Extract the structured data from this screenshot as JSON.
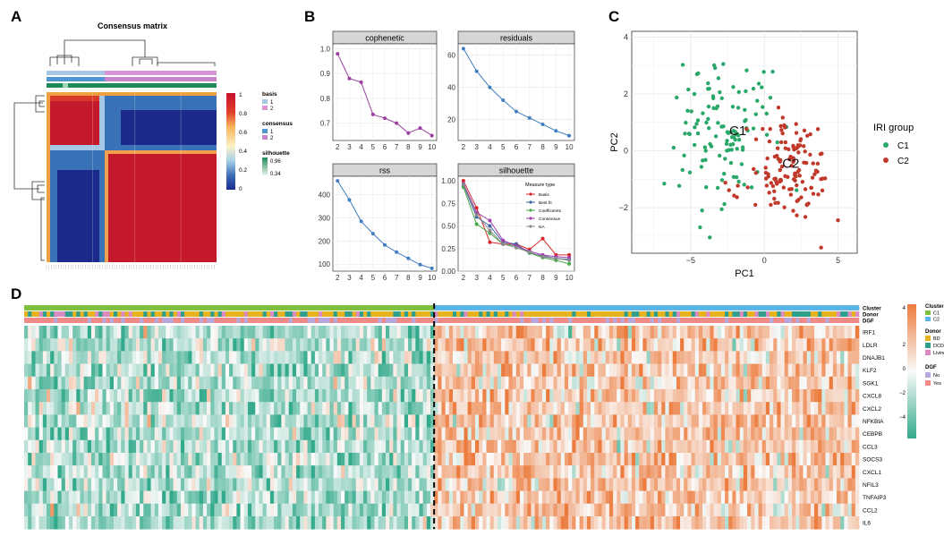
{
  "panels": {
    "A": {
      "letter": "A",
      "title": "Consensus matrix",
      "legend": {
        "basis_title": "basis",
        "basis_items": [
          "1",
          "2"
        ],
        "consensus_title": "consensus",
        "consensus_items": [
          "1",
          "2"
        ],
        "silhouette_title": "silhouette",
        "silhouette_ticks": [
          "0.96",
          "0.34"
        ],
        "scale_ticks": [
          "1",
          "0.8",
          "0.6",
          "0.4",
          "0.2",
          "0"
        ]
      },
      "colors": {
        "basis_1": "#a6c8e6",
        "basis_2": "#d696d6",
        "consensus_1": "#4f96d2",
        "consensus_2": "#c785c9",
        "silhouette": "#1e8a5a"
      }
    },
    "B": {
      "letter": "B"
    },
    "C": {
      "letter": "C"
    },
    "D": {
      "letter": "D",
      "track_labels": [
        "Cluster",
        "Donor",
        "DGF"
      ],
      "genes": [
        "IRF1",
        "LDLR",
        "DNAJB1",
        "KLF2",
        "SGK1",
        "CXCL8",
        "CXCL2",
        "NFKBIA",
        "CEBPB",
        "CCL3",
        "SOCS3",
        "CXCL1",
        "NFIL3",
        "TNFAIP3",
        "CCL2",
        "IL6"
      ],
      "legend": {
        "cluster_title": "Cluster",
        "cluster_items": [
          "C1",
          "C2"
        ],
        "donor_title": "Donor",
        "donor_items": [
          "BD",
          "DCD",
          "Living"
        ],
        "dgf_title": "DGF",
        "dgf_items": [
          "No",
          "Yes"
        ],
        "scale_ticks": [
          "4",
          "2",
          "0",
          "−2",
          "−4"
        ]
      },
      "colors": {
        "C1": "#7fbf3f",
        "C2": "#5ab4e5",
        "BD": "#e6b21e",
        "DCD": "#2f9e8a",
        "Living": "#d98ac0",
        "No": "#b7a7dc",
        "Yes": "#f08a86"
      }
    }
  },
  "chart_data": [
    {
      "type": "heatmap",
      "panel": "A",
      "title": "Consensus matrix",
      "blocks": [
        {
          "name": "cluster 1",
          "share": 0.34
        },
        {
          "name": "cluster 2",
          "share": 0.66
        }
      ],
      "value_range": [
        0,
        1
      ]
    },
    {
      "type": "line",
      "panel": "B",
      "title": "cophenetic",
      "x": [
        2,
        3,
        4,
        5,
        6,
        7,
        8,
        9,
        10
      ],
      "values": [
        0.98,
        0.88,
        0.865,
        0.735,
        0.72,
        0.7,
        0.66,
        0.68,
        0.65
      ],
      "ylim": [
        0.63,
        1.02
      ],
      "yticks": [
        0.7,
        0.8,
        0.9,
        1.0
      ],
      "ytick_labels": [
        "0.7",
        "0.8",
        "0.9",
        "1.0"
      ],
      "color": "#9a40a0"
    },
    {
      "type": "line",
      "panel": "B",
      "title": "residuals",
      "x": [
        2,
        3,
        4,
        5,
        6,
        7,
        8,
        9,
        10
      ],
      "values": [
        64,
        50,
        40,
        32,
        25,
        21,
        17,
        13,
        10
      ],
      "ylim": [
        7,
        67
      ],
      "yticks": [
        20,
        40,
        60
      ],
      "ytick_labels": [
        "20",
        "40",
        "60"
      ],
      "color": "#3f7fc0"
    },
    {
      "type": "line",
      "panel": "B",
      "title": "rss",
      "x": [
        2,
        3,
        4,
        5,
        6,
        7,
        8,
        9,
        10
      ],
      "values": [
        460,
        378,
        285,
        232,
        183,
        152,
        125,
        98,
        82
      ],
      "ylim": [
        70,
        480
      ],
      "yticks": [
        100,
        200,
        300,
        400
      ],
      "ytick_labels": [
        "100",
        "200",
        "300",
        "400"
      ],
      "color": "#3f7fc0"
    },
    {
      "type": "line",
      "panel": "B",
      "title": "silhouette",
      "x": [
        2,
        3,
        4,
        5,
        6,
        7,
        8,
        9,
        10
      ],
      "legend_title": "Measure type",
      "series": [
        {
          "name": "Basis",
          "color": "#d8262a",
          "values": [
            1.0,
            0.7,
            0.32,
            0.3,
            0.3,
            0.24,
            0.36,
            0.18,
            0.18
          ]
        },
        {
          "name": "Best fit",
          "color": "#3a62a8",
          "values": [
            0.95,
            0.6,
            0.5,
            0.32,
            0.3,
            0.2,
            0.17,
            0.14,
            0.13
          ]
        },
        {
          "name": "Coefficients",
          "color": "#4aa84a",
          "values": [
            0.93,
            0.52,
            0.42,
            0.3,
            0.28,
            0.2,
            0.15,
            0.12,
            0.08
          ]
        },
        {
          "name": "Consensus",
          "color": "#a03fae",
          "values": [
            0.97,
            0.65,
            0.56,
            0.34,
            0.28,
            0.22,
            0.18,
            0.16,
            0.15
          ]
        },
        {
          "name": "NA",
          "color": "#888888",
          "values": [
            0.96,
            0.62,
            0.45,
            0.3,
            0.26,
            0.21,
            0.16,
            0.14,
            0.12
          ]
        }
      ],
      "ylim": [
        0.0,
        1.05
      ],
      "yticks": [
        0.0,
        0.25,
        0.5,
        0.75,
        1.0
      ],
      "ytick_labels": [
        "0.00",
        "0.25",
        "0.50",
        "0.75",
        "1.00"
      ]
    },
    {
      "type": "scatter",
      "panel": "C",
      "xlabel": "PC1",
      "ylabel": "PC2",
      "xlim": [
        -9,
        6.3
      ],
      "ylim": [
        -3.6,
        4.2
      ],
      "xticks": [
        -5,
        0,
        5
      ],
      "xtick_labels": [
        "−5",
        "0",
        "5"
      ],
      "yticks": [
        -2,
        0,
        2,
        4
      ],
      "ytick_labels": [
        "−2",
        "0",
        "2",
        "4"
      ],
      "legend_title": "IRI group",
      "series": [
        {
          "name": "C1",
          "color": "#2aa86a",
          "center": [
            -2.8,
            0.6
          ],
          "spread": [
            2.0,
            1.45
          ],
          "n": 120,
          "seed": 7
        },
        {
          "name": "C2",
          "color": "#c0392b",
          "center": [
            1.8,
            -0.8
          ],
          "spread": [
            1.8,
            1.0
          ],
          "n": 130,
          "seed": 21
        }
      ],
      "annotations": [
        {
          "text": "C1",
          "x": -1.8,
          "y": 0.55
        },
        {
          "text": "C2",
          "x": 1.8,
          "y": -0.6
        }
      ]
    },
    {
      "type": "heatmap",
      "panel": "D",
      "rows": [
        "IRF1",
        "LDLR",
        "DNAJB1",
        "KLF2",
        "SGK1",
        "CXCL8",
        "CXCL2",
        "NFKBIA",
        "CEBPB",
        "CCL3",
        "SOCS3",
        "CXCL1",
        "NFIL3",
        "TNFAIP3",
        "CCL2",
        "IL6"
      ],
      "groups": [
        {
          "name": "C1",
          "columns": 110
        },
        {
          "name": "C2",
          "columns": 114
        }
      ],
      "value_range": [
        -4,
        4
      ],
      "pattern": "C1 samples mostly low (teal), C2 samples mostly high (orange)"
    }
  ]
}
